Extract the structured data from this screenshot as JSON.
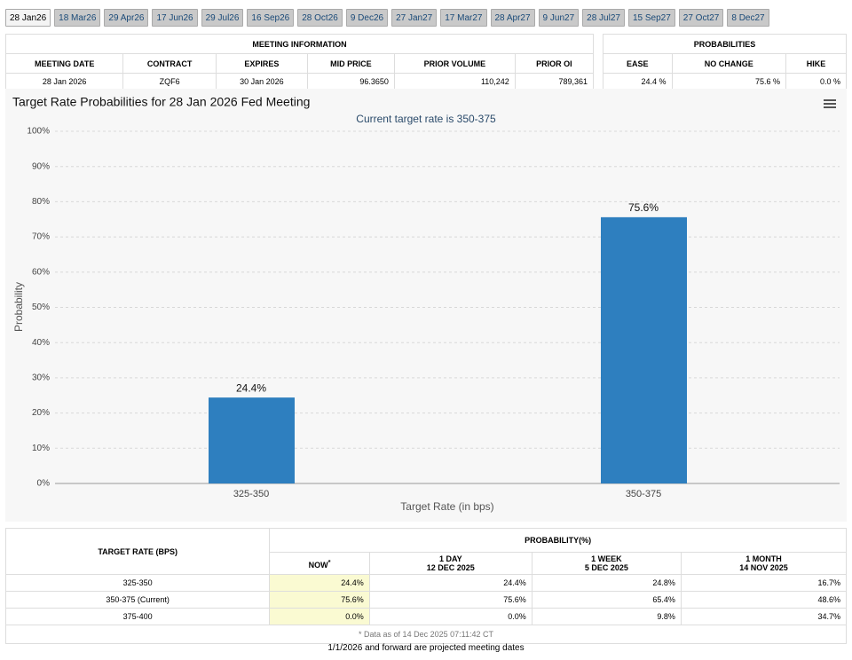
{
  "tabs": [
    "28 Jan26",
    "18 Mar26",
    "29 Apr26",
    "17 Jun26",
    "29 Jul26",
    "16 Sep26",
    "28 Oct26",
    "9 Dec26",
    "27 Jan27",
    "17 Mar27",
    "28 Apr27",
    "9 Jun27",
    "28 Jul27",
    "15 Sep27",
    "27 Oct27",
    "8 Dec27"
  ],
  "meeting_info": {
    "title": "MEETING INFORMATION",
    "headers": [
      "MEETING DATE",
      "CONTRACT",
      "EXPIRES",
      "MID PRICE",
      "PRIOR VOLUME",
      "PRIOR OI"
    ],
    "row": [
      "28 Jan 2026",
      "ZQF6",
      "30 Jan 2026",
      "96.3650",
      "110,242",
      "789,361"
    ]
  },
  "probabilities": {
    "title": "PROBABILITIES",
    "headers": [
      "EASE",
      "NO CHANGE",
      "HIKE"
    ],
    "row": [
      "24.4 %",
      "75.6 %",
      "0.0 %"
    ]
  },
  "chart_data": {
    "type": "bar",
    "title": "Target Rate Probabilities for 28 Jan 2026 Fed Meeting",
    "subtitle": "Current target rate is 350-375",
    "x_label": "Target Rate (in bps)",
    "y_label": "Probability",
    "categories": [
      "325-350",
      "350-375"
    ],
    "values": [
      24.4,
      75.6
    ],
    "value_labels": [
      "24.4%",
      "75.6%"
    ],
    "color": "#2e7fbf",
    "ylim": [
      0,
      100
    ],
    "yticks": [
      {
        "value": 0,
        "label": "0%"
      },
      {
        "value": 10,
        "label": "10%"
      },
      {
        "value": 20,
        "label": "20%"
      },
      {
        "value": 30,
        "label": "30%"
      },
      {
        "value": 40,
        "label": "40%"
      },
      {
        "value": 50,
        "label": "50%"
      },
      {
        "value": 60,
        "label": "60%"
      },
      {
        "value": 70,
        "label": "70%"
      },
      {
        "value": 80,
        "label": "80%"
      },
      {
        "value": 90,
        "label": "90%"
      },
      {
        "value": 100,
        "label": "100%"
      }
    ],
    "grid": true
  },
  "prob_table": {
    "row_header": "TARGET RATE (BPS)",
    "group_header": "PROBABILITY(%)",
    "columns": [
      {
        "title": "NOW",
        "mark": "*"
      },
      {
        "title": "1 DAY",
        "date": "12 DEC 2025"
      },
      {
        "title": "1 WEEK",
        "date": "5 DEC 2025"
      },
      {
        "title": "1 MONTH",
        "date": "14 NOV 2025"
      }
    ],
    "rows": [
      [
        "325-350",
        "24.4%",
        "24.4%",
        "24.8%",
        "16.7%"
      ],
      [
        "350-375 (Current)",
        "75.6%",
        "75.6%",
        "65.4%",
        "48.6%"
      ],
      [
        "375-400",
        "0.0%",
        "0.0%",
        "9.8%",
        "34.7%"
      ]
    ],
    "note": "* Data as of 14 Dec 2025 07:11:42 CT"
  },
  "footer": "1/1/2026 and forward are projected meeting dates"
}
